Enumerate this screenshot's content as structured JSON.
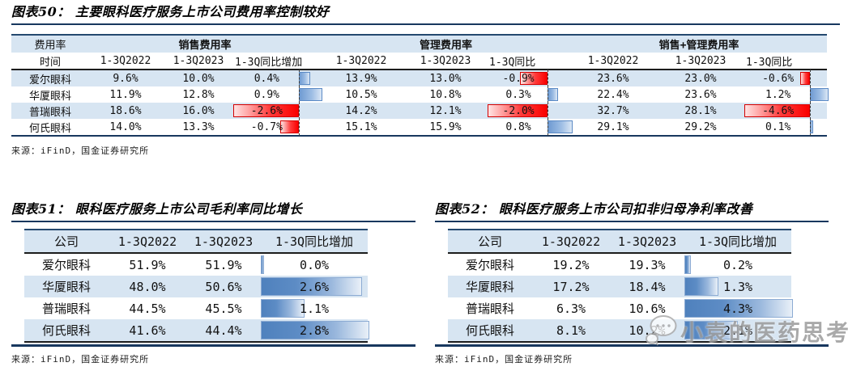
{
  "figure50": {
    "title": "图表50： 主要眼科医疗服务上市公司费用率控制较好",
    "corner_top": "费用率",
    "corner_bottom": "时间",
    "groups": [
      {
        "label": "销售费用率",
        "span": 3
      },
      {
        "label": "管理费用率",
        "span": 3
      },
      {
        "label": "销售+管理费用率",
        "span": 3
      }
    ],
    "columns": [
      "1-3Q2022",
      "1-3Q2023",
      "1-3Q同比增加",
      "1-3Q2022",
      "1-3Q2023",
      "1-3Q同比",
      "1-3Q2022",
      "1-3Q2023",
      "1-3Q同比"
    ],
    "delta_cols": [
      3,
      6,
      9
    ],
    "rows": [
      [
        "爱尔眼科",
        "9.6%",
        "10.0%",
        "0.4%",
        "13.9%",
        "13.0%",
        "-0.9%",
        "23.6%",
        "23.0%",
        "-0.6%"
      ],
      [
        "华厦眼科",
        "11.9%",
        "12.8%",
        "0.9%",
        "10.5%",
        "10.8%",
        "0.3%",
        "22.4%",
        "23.6%",
        "1.2%"
      ],
      [
        "普瑞眼科",
        "18.6%",
        "16.0%",
        "-2.6%",
        "14.2%",
        "12.1%",
        "-2.0%",
        "32.7%",
        "28.1%",
        "-4.6%"
      ],
      [
        "何氏眼科",
        "14.0%",
        "13.3%",
        "-0.7%",
        "15.1%",
        "15.9%",
        "0.8%",
        "29.1%",
        "29.2%",
        "0.1%"
      ]
    ],
    "source": "来源：iFinD，国金证券研究所"
  },
  "figure51": {
    "title": "图表51： 眼科医疗服务上市公司毛利率同比增长",
    "columns": [
      "公司",
      "1-3Q2022",
      "1-3Q2023",
      "1-3Q同比增加"
    ],
    "delta_cols": [
      3
    ],
    "rows": [
      [
        "爱尔眼科",
        "51.9%",
        "51.9%",
        "0.0%"
      ],
      [
        "华厦眼科",
        "48.0%",
        "50.6%",
        "2.6%"
      ],
      [
        "普瑞眼科",
        "44.5%",
        "45.5%",
        "1.1%"
      ],
      [
        "何氏眼科",
        "41.6%",
        "44.4%",
        "2.8%"
      ]
    ],
    "source": "来源：iFinD，国金证券研究所"
  },
  "figure52": {
    "title": "图表52： 眼科医疗服务上市公司扣非归母净利率改善",
    "columns": [
      "公司",
      "1-3Q2022",
      "1-3Q2023",
      "1-3Q同比增加"
    ],
    "delta_cols": [
      3
    ],
    "rows": [
      [
        "爱尔眼科",
        "19.2%",
        "19.3%",
        "0.2%"
      ],
      [
        "华厦眼科",
        "17.2%",
        "18.4%",
        "1.3%"
      ],
      [
        "普瑞眼科",
        "6.3%",
        "10.6%",
        "4.3%"
      ],
      [
        "何氏眼科",
        "8.1%",
        "10.2%",
        "2.1%"
      ]
    ],
    "source": "来源：iFinD，国金证券研究所"
  },
  "watermark": {
    "text": "小袁的医药思考",
    "icon": "chat-bubbles-icon"
  },
  "colors": {
    "accent_navy": "#17375e",
    "band_blue": "#d7e5f2",
    "bar_blue": "#4f81bd",
    "bar_red": "#fa0000"
  }
}
